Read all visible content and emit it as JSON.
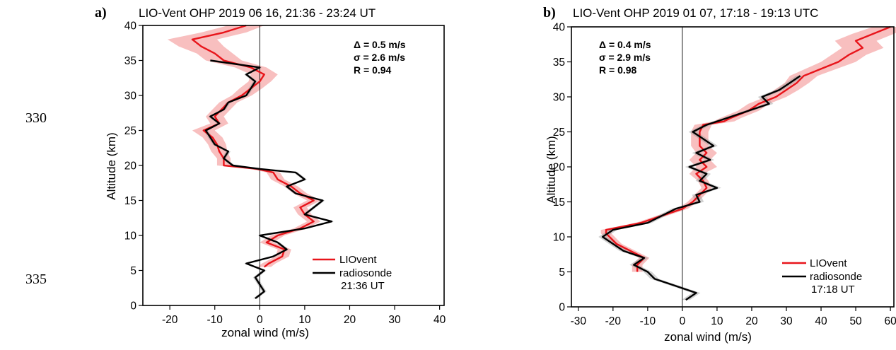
{
  "line_numbers": [
    "330",
    "335"
  ],
  "colors": {
    "liovent": "#e8151b",
    "band": "#f7b4b4",
    "radiosonde": "#000000",
    "sonde_band": "#9a9a9a"
  },
  "chart_data": [
    {
      "type": "line",
      "panel_label": "a)",
      "title": "LIO-Vent OHP 2019 06 16, 21:36 - 23:24 UT",
      "xlabel": "zonal wind (m/s)",
      "ylabel": "Altitude (km)",
      "xlim": [
        -26,
        41
      ],
      "ylim": [
        0,
        40
      ],
      "xticks": [
        "-20",
        "-10",
        "0",
        "10",
        "20",
        "30",
        "40"
      ],
      "xtick_values": [
        -20,
        -10,
        0,
        10,
        20,
        30,
        40
      ],
      "yticks": [
        "0",
        "5",
        "10",
        "15",
        "20",
        "25",
        "30",
        "35",
        "40"
      ],
      "ytick_values": [
        0,
        5,
        10,
        15,
        20,
        25,
        30,
        35,
        40
      ],
      "stats": [
        "Δ = 0.5 m/s",
        "σ = 2.6 m/s",
        "R = 0.94"
      ],
      "legend": {
        "position": "bottom-right",
        "entries": [
          "LIOvent",
          "radiosonde",
          "21:36 UT"
        ]
      },
      "series": [
        {
          "name": "LIOvent",
          "y": [
            5.5,
            6,
            7,
            8,
            9,
            10,
            11,
            12,
            13,
            14,
            15,
            16,
            17,
            18,
            19,
            19.5,
            20,
            21,
            22,
            23,
            24,
            25,
            26,
            27,
            28,
            29,
            30,
            31,
            32,
            33,
            34,
            35,
            36,
            37,
            38,
            39,
            40
          ],
          "x": [
            1,
            2,
            5,
            5.5,
            1.5,
            4,
            9,
            12,
            10,
            9,
            12,
            9,
            7,
            4,
            3,
            -0.5,
            -8,
            -8,
            -9,
            -9.5,
            -10.5,
            -12.5,
            -9,
            -10,
            -8.5,
            -7,
            -4,
            -2,
            0,
            1,
            -2,
            -8,
            -10,
            -13,
            -15,
            -8,
            -3
          ],
          "err": [
            1.5,
            1.5,
            1.5,
            1.5,
            1.5,
            1.5,
            1.5,
            1.5,
            1.5,
            1.5,
            1.5,
            1.5,
            1.5,
            1.5,
            1.5,
            1.5,
            1.5,
            1.5,
            1.8,
            2,
            2.2,
            2.5,
            2,
            2,
            2,
            2,
            2.2,
            2.5,
            2.5,
            3,
            3.5,
            4,
            4,
            5,
            5.5,
            5,
            4
          ]
        },
        {
          "name": "radiosonde",
          "y": [
            1,
            2,
            3,
            4,
            5,
            6,
            7,
            8,
            9,
            10,
            11,
            12,
            13,
            14,
            15,
            16,
            17,
            18,
            19,
            19.5,
            20,
            21,
            22,
            23,
            24,
            25,
            26,
            27,
            28,
            29,
            30,
            31,
            32,
            33,
            34,
            35
          ],
          "x": [
            -1,
            1,
            0,
            -1,
            1,
            -3,
            3,
            6,
            4,
            0,
            10,
            16,
            10,
            12,
            14,
            8,
            6,
            10,
            8,
            0,
            -6,
            -8,
            -7,
            -10,
            -11,
            -12,
            -9,
            -11,
            -8,
            -7,
            -3,
            -2,
            -1,
            -3,
            0,
            -11
          ],
          "err": [
            0.5,
            0.5,
            0.5,
            0.5,
            0.5,
            0.5,
            0.5,
            0.5,
            0.5,
            0.5,
            0.5,
            0.5,
            0.5,
            0.5,
            0.5,
            0.5,
            0.5,
            0.5,
            0.5,
            0.5,
            0.5,
            0.5,
            0.5,
            0.5,
            0.5,
            0.5,
            0.5,
            0.5,
            0.5,
            0.5,
            0.5,
            0.5,
            0.5,
            0.5,
            0.5,
            0.5
          ]
        }
      ]
    },
    {
      "type": "line",
      "panel_label": "b)",
      "title": "LIO-Vent OHP 2019 01 07, 17:18 - 19:13 UTC",
      "xlabel": "zonal wind (m/s)",
      "ylabel": "Altitude (km)",
      "xlim": [
        -32,
        61
      ],
      "ylim": [
        0,
        40
      ],
      "xticks": [
        "-30",
        "-20",
        "-10",
        "0",
        "10",
        "20",
        "30",
        "40",
        "50",
        "60"
      ],
      "xtick_values": [
        -30,
        -20,
        -10,
        0,
        10,
        20,
        30,
        40,
        50,
        60
      ],
      "yticks": [
        "0",
        "5",
        "10",
        "15",
        "20",
        "25",
        "30",
        "35",
        "40"
      ],
      "ytick_values": [
        0,
        5,
        10,
        15,
        20,
        25,
        30,
        35,
        40
      ],
      "stats": [
        "Δ = 0.4 m/s",
        "σ = 2.9 m/s",
        "R = 0.98"
      ],
      "legend": {
        "position": "bottom-right",
        "entries": [
          "LIOvent",
          "radiosonde",
          "17:18 UT"
        ]
      },
      "series": [
        {
          "name": "LIOvent",
          "y": [
            5,
            6,
            7,
            8,
            9,
            10,
            10.5,
            11,
            12,
            13,
            14,
            15,
            16,
            17,
            18,
            19,
            20,
            21,
            22,
            23,
            24,
            25,
            26,
            26.5,
            27,
            28,
            29,
            30,
            31,
            32,
            33,
            34,
            35,
            36,
            37,
            38,
            39,
            40
          ],
          "x": [
            -13,
            -13,
            -11,
            -15,
            -19,
            -21,
            -22,
            -22,
            -12,
            -6,
            0,
            3,
            5,
            7,
            6,
            4,
            7,
            5,
            7,
            5,
            5,
            5,
            6,
            12,
            14,
            19,
            22,
            27,
            30,
            33,
            35,
            40,
            45,
            48,
            52,
            50,
            55,
            60
          ],
          "err": [
            1.5,
            1.5,
            1.5,
            1.5,
            1.5,
            1.5,
            1.5,
            1.5,
            1.5,
            1.5,
            1.5,
            1.5,
            1.5,
            1.5,
            1.5,
            2,
            3,
            3,
            3,
            2.5,
            2.5,
            2.5,
            2.5,
            3,
            3,
            3,
            3,
            3,
            3.5,
            3.5,
            4,
            4.5,
            5,
            5,
            6,
            6,
            6,
            5
          ]
        },
        {
          "name": "radiosonde",
          "y": [
            1,
            2,
            3,
            4,
            5,
            6,
            7,
            8,
            9,
            10,
            11,
            12,
            13,
            14,
            15,
            16,
            17,
            18,
            19,
            20,
            21,
            22,
            23,
            24,
            25,
            26,
            27,
            28,
            29,
            30,
            31,
            32,
            33
          ],
          "x": [
            1,
            4,
            -2,
            -8,
            -10,
            -14,
            -11,
            -17,
            -20,
            -23,
            -20,
            -10,
            -6,
            -2,
            5,
            4,
            10,
            5,
            7,
            2,
            8,
            4,
            9,
            6,
            3,
            7,
            13,
            19,
            25,
            23,
            28,
            31,
            34
          ],
          "err": [
            1.2,
            1.2,
            1.2,
            1.2,
            1.2,
            1.2,
            1.2,
            1.2,
            1.2,
            1.2,
            1.2,
            1.2,
            1.2,
            1.2,
            1.2,
            1.2,
            1.2,
            1.2,
            1.2,
            1.2,
            1.2,
            1.2,
            1.2,
            1.2,
            1.2,
            1.2,
            1.2,
            1.2,
            1.2,
            1.2,
            1.2,
            1.2,
            1.2
          ]
        }
      ]
    }
  ]
}
